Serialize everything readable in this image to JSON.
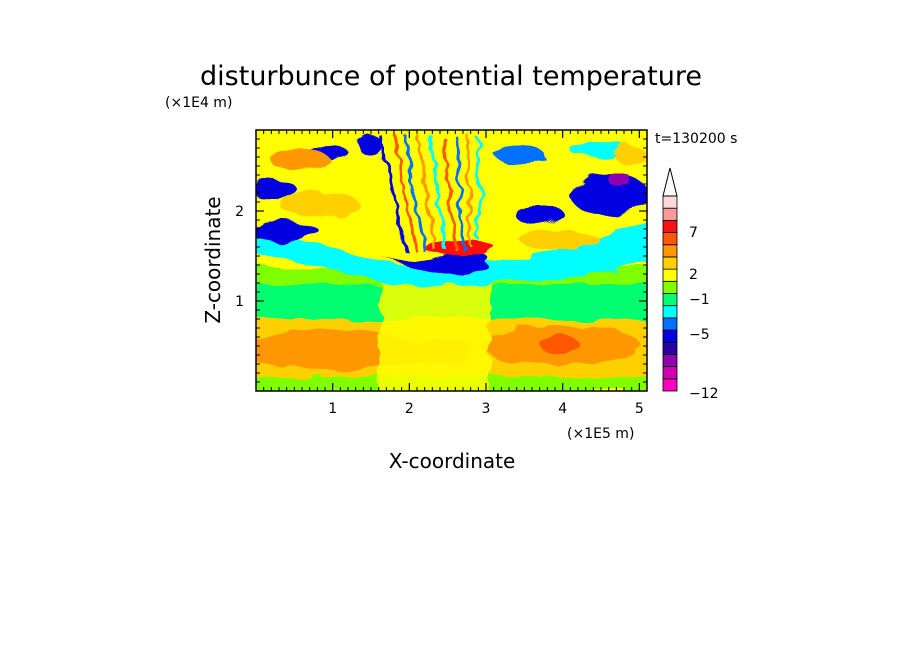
{
  "chart_data": {
    "type": "heatmap",
    "title": "disturbunce of potential temperature",
    "xlabel": "X-coordinate",
    "ylabel": "Z-coordinate",
    "x_scale_label": "(×1E5 m)",
    "y_scale_label": "(×1E4 m)",
    "time_label": "t=130200 s",
    "xlim": [
      0,
      5.1
    ],
    "ylim": [
      0,
      2.9
    ],
    "x_ticks": [
      "1",
      "2",
      "3",
      "4",
      "5"
    ],
    "y_ticks": [
      "1",
      "2"
    ],
    "colorbar": {
      "labels": [
        "7",
        "2",
        "−1",
        "−5",
        "−12"
      ],
      "colors": [
        "#ff00c0",
        "#d000b0",
        "#9000b0",
        "#2800a8",
        "#0000e0",
        "#0070ff",
        "#00ffff",
        "#00ff70",
        "#80ff00",
        "#ffff00",
        "#ffd000",
        "#ff9800",
        "#ff5800",
        "#ff1010",
        "#ff9898",
        "#ffd8d8"
      ],
      "extend": "max"
    }
  }
}
